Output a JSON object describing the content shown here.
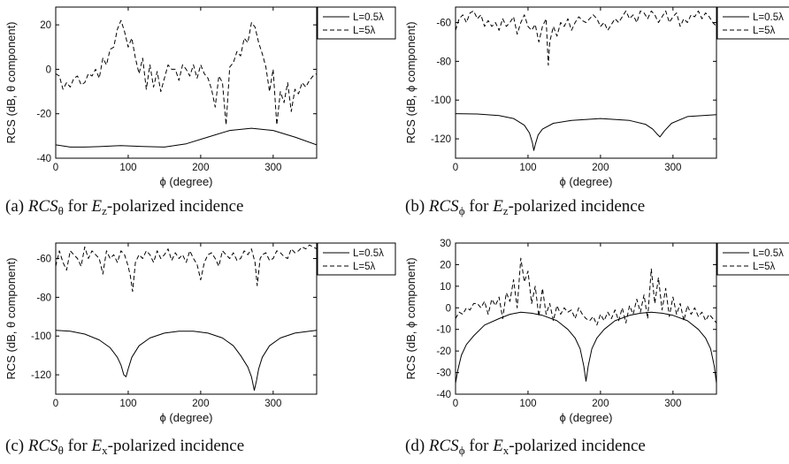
{
  "chart_data": [
    {
      "type": "line",
      "panel": "a",
      "ylabel": "RCS (dB, θ component)",
      "xlabel": "ϕ (degree)",
      "xlim": [
        0,
        360
      ],
      "ylim": [
        -40,
        28
      ],
      "xticks": [
        0,
        100,
        200,
        300
      ],
      "yticks": [
        20,
        0,
        -20,
        -40
      ],
      "legend": "top-right",
      "grid": false,
      "caption": {
        "label": "(a)",
        "rcs": "RCS",
        "sub": "θ",
        "mid": " for ",
        "e": "E",
        "esub": "z",
        "rest": "-polarized incidence"
      },
      "series": [
        {
          "name": "L=0.5λ",
          "style": "solid",
          "x": [
            0,
            20,
            40,
            60,
            90,
            120,
            150,
            180,
            210,
            240,
            270,
            300,
            330,
            360
          ],
          "y": [
            -34,
            -35,
            -35,
            -34.8,
            -34.3,
            -34.7,
            -35,
            -33.5,
            -30.5,
            -27.5,
            -26.5,
            -27.5,
            -30.5,
            -34
          ]
        },
        {
          "name": "L=5λ",
          "style": "dashed",
          "x": [
            0,
            5,
            10,
            15,
            20,
            25,
            30,
            35,
            40,
            45,
            50,
            55,
            60,
            65,
            70,
            75,
            80,
            85,
            90,
            95,
            100,
            105,
            110,
            115,
            120,
            125,
            130,
            135,
            140,
            145,
            150,
            155,
            160,
            165,
            170,
            175,
            180,
            185,
            190,
            195,
            200,
            205,
            210,
            215,
            220,
            225,
            230,
            235,
            240,
            245,
            250,
            255,
            260,
            265,
            270,
            275,
            280,
            285,
            290,
            295,
            300,
            305,
            310,
            315,
            320,
            325,
            330,
            335,
            340,
            345,
            350,
            355,
            360
          ],
          "y": [
            -2,
            -3,
            -9,
            -6,
            -8,
            -4,
            -3,
            -7,
            -6,
            -2,
            -3,
            0,
            -4,
            5,
            2,
            9,
            10,
            18,
            22,
            17,
            10,
            14,
            5,
            -2,
            5,
            -9,
            2,
            -8,
            -1,
            -10,
            -4,
            2,
            0,
            0,
            -5,
            2,
            0,
            -3,
            2,
            -4,
            2,
            -2,
            -4,
            -9,
            -17,
            -3,
            -6,
            -25,
            1,
            3,
            8,
            6,
            14,
            12,
            21,
            19,
            12,
            7,
            1,
            -10,
            0,
            -25,
            -10,
            -15,
            -6,
            -19,
            -9,
            -11,
            -6,
            -8,
            -5,
            -3,
            -2
          ]
        }
      ]
    },
    {
      "type": "line",
      "panel": "b",
      "ylabel": "RCS (dB, ϕ component)",
      "xlabel": "ϕ (degree)",
      "xlim": [
        0,
        360
      ],
      "ylim": [
        -130,
        -52
      ],
      "xticks": [
        0,
        100,
        200,
        300
      ],
      "yticks": [
        -60,
        -80,
        -100,
        -120
      ],
      "legend": "top-right",
      "grid": false,
      "caption": {
        "label": "(b)",
        "rcs": "RCS",
        "sub": "ϕ",
        "mid": " for ",
        "e": "E",
        "esub": "z",
        "rest": "-polarized incidence"
      },
      "series": [
        {
          "name": "L=0.5λ",
          "style": "solid",
          "x": [
            0,
            30,
            60,
            80,
            95,
            102,
            106,
            108,
            110,
            114,
            120,
            135,
            160,
            200,
            240,
            262,
            272,
            278,
            282,
            288,
            298,
            320,
            360
          ],
          "y": [
            -107,
            -107.2,
            -108,
            -109.5,
            -113,
            -117,
            -122,
            -126,
            -123,
            -118,
            -115,
            -112,
            -110.5,
            -109.5,
            -110.5,
            -112.5,
            -115,
            -117.5,
            -119,
            -116,
            -112,
            -108.5,
            -107.5
          ]
        },
        {
          "name": "L=5λ",
          "style": "dashed",
          "x": [
            0,
            5,
            10,
            15,
            20,
            25,
            30,
            35,
            40,
            45,
            50,
            55,
            60,
            65,
            70,
            75,
            80,
            85,
            90,
            95,
            100,
            105,
            110,
            115,
            120,
            125,
            128,
            130,
            135,
            140,
            145,
            150,
            155,
            160,
            165,
            170,
            175,
            180,
            185,
            190,
            195,
            200,
            205,
            210,
            215,
            220,
            225,
            230,
            235,
            240,
            245,
            250,
            255,
            260,
            265,
            270,
            275,
            280,
            285,
            290,
            295,
            300,
            305,
            310,
            315,
            320,
            325,
            330,
            335,
            340,
            345,
            350,
            355,
            360
          ],
          "y": [
            -64,
            -58,
            -56,
            -60,
            -55,
            -54,
            -58,
            -56,
            -62,
            -59,
            -62,
            -60,
            -64,
            -58,
            -62,
            -60,
            -57,
            -66,
            -60,
            -56,
            -62,
            -64,
            -61,
            -70,
            -62,
            -58,
            -82,
            -70,
            -62,
            -67,
            -60,
            -62,
            -58,
            -64,
            -60,
            -57,
            -59,
            -60,
            -58,
            -56,
            -58,
            -62,
            -60,
            -64,
            -61,
            -58,
            -60,
            -57,
            -54,
            -58,
            -56,
            -60,
            -54,
            -55,
            -58,
            -54,
            -56,
            -60,
            -57,
            -54,
            -60,
            -57,
            -55,
            -62,
            -58,
            -60,
            -56,
            -57,
            -54,
            -58,
            -55,
            -57,
            -60,
            -62
          ]
        }
      ]
    },
    {
      "type": "line",
      "panel": "c",
      "ylabel": "RCS (dB, θ component)",
      "xlabel": "ϕ (degree)",
      "xlim": [
        0,
        360
      ],
      "ylim": [
        -130,
        -52
      ],
      "xticks": [
        0,
        100,
        200,
        300
      ],
      "yticks": [
        -60,
        -80,
        -100,
        -120
      ],
      "legend": "top-right",
      "grid": false,
      "caption": {
        "label": "(c)",
        "rcs": "RCS",
        "sub": "θ",
        "mid": " for ",
        "e": "E",
        "esub": "x",
        "rest": "-polarized incidence"
      },
      "series": [
        {
          "name": "L=0.5λ",
          "style": "solid",
          "x": [
            0,
            20,
            40,
            60,
            75,
            85,
            90,
            94,
            97,
            100,
            105,
            115,
            130,
            150,
            170,
            190,
            210,
            230,
            245,
            255,
            265,
            270,
            274,
            277,
            280,
            285,
            295,
            310,
            330,
            350,
            360
          ],
          "y": [
            -97,
            -97.5,
            -99,
            -102,
            -106,
            -111,
            -115,
            -120,
            -121,
            -117,
            -111,
            -105,
            -101,
            -98.5,
            -97.5,
            -97.5,
            -98.5,
            -101,
            -105,
            -110,
            -116,
            -121,
            -128,
            -123,
            -117,
            -111,
            -105,
            -101,
            -98.5,
            -97.5,
            -97
          ]
        },
        {
          "name": "L=5λ",
          "style": "dashed",
          "x": [
            0,
            5,
            10,
            15,
            20,
            25,
            30,
            35,
            40,
            45,
            50,
            55,
            60,
            65,
            70,
            75,
            80,
            85,
            90,
            95,
            100,
            103,
            106,
            110,
            115,
            120,
            125,
            130,
            135,
            140,
            145,
            150,
            155,
            160,
            165,
            170,
            175,
            180,
            185,
            190,
            195,
            200,
            205,
            210,
            215,
            220,
            225,
            230,
            235,
            240,
            245,
            250,
            255,
            260,
            265,
            270,
            275,
            278,
            282,
            285,
            290,
            295,
            300,
            305,
            310,
            315,
            320,
            325,
            330,
            335,
            340,
            345,
            350,
            355,
            360
          ],
          "y": [
            -64,
            -56,
            -62,
            -66,
            -56,
            -58,
            -60,
            -64,
            -54,
            -60,
            -56,
            -58,
            -60,
            -68,
            -56,
            -60,
            -58,
            -62,
            -56,
            -58,
            -64,
            -69,
            -77,
            -62,
            -58,
            -60,
            -56,
            -58,
            -62,
            -56,
            -60,
            -58,
            -55,
            -61,
            -57,
            -60,
            -58,
            -62,
            -56,
            -60,
            -63,
            -71,
            -62,
            -58,
            -57,
            -60,
            -64,
            -56,
            -58,
            -60,
            -57,
            -61,
            -60,
            -56,
            -58,
            -55,
            -62,
            -74,
            -60,
            -58,
            -57,
            -61,
            -60,
            -56,
            -57,
            -59,
            -60,
            -55,
            -57,
            -56,
            -54,
            -55,
            -53,
            -54,
            -55
          ]
        }
      ]
    },
    {
      "type": "line",
      "panel": "d",
      "ylabel": "RCS (dB, ϕ component)",
      "xlabel": "ϕ (degree)",
      "xlim": [
        0,
        360
      ],
      "ylim": [
        -40,
        30
      ],
      "xticks": [
        0,
        100,
        200,
        300
      ],
      "yticks": [
        30,
        20,
        10,
        0,
        -10,
        -20,
        -30,
        -40
      ],
      "legend": "top-right",
      "grid": false,
      "caption": {
        "label": "(d)",
        "rcs": "RCS",
        "sub": "ϕ",
        "mid": " for ",
        "e": "E",
        "esub": "x",
        "rest": "-polarized incidence"
      },
      "series": [
        {
          "name": "L=0.5λ",
          "style": "solid",
          "x": [
            0,
            3,
            8,
            15,
            25,
            40,
            60,
            75,
            90,
            105,
            120,
            140,
            155,
            165,
            172,
            177,
            180,
            183,
            188,
            195,
            205,
            220,
            240,
            255,
            270,
            285,
            300,
            320,
            335,
            345,
            352,
            357,
            360
          ],
          "y": [
            -35,
            -29,
            -22,
            -17,
            -13,
            -8,
            -5,
            -3,
            -2,
            -2.5,
            -3.5,
            -6,
            -10,
            -14,
            -19,
            -27,
            -34,
            -27,
            -19,
            -14,
            -10,
            -6,
            -3.5,
            -2.5,
            -2,
            -2.5,
            -3.5,
            -6,
            -10,
            -14,
            -19,
            -27,
            -35
          ]
        },
        {
          "name": "L=5λ",
          "style": "dashed",
          "x": [
            0,
            5,
            10,
            15,
            20,
            25,
            30,
            35,
            40,
            45,
            50,
            55,
            60,
            65,
            70,
            75,
            80,
            85,
            90,
            95,
            100,
            105,
            110,
            115,
            120,
            125,
            130,
            135,
            140,
            145,
            150,
            155,
            160,
            165,
            170,
            175,
            180,
            185,
            190,
            195,
            200,
            205,
            210,
            215,
            220,
            225,
            230,
            235,
            240,
            245,
            250,
            255,
            260,
            265,
            270,
            275,
            280,
            285,
            290,
            295,
            300,
            305,
            310,
            315,
            320,
            325,
            330,
            335,
            340,
            345,
            350,
            355,
            360
          ],
          "y": [
            -5,
            -2,
            -3,
            0,
            -1,
            2,
            2,
            0,
            3,
            -3,
            4,
            1,
            5,
            -5,
            7,
            3,
            13,
            0,
            23,
            12,
            17,
            2,
            10,
            -4,
            9,
            -3,
            2,
            -6,
            1,
            -3,
            0,
            -2,
            -1,
            -5,
            0,
            -3,
            -5,
            -6,
            -4,
            -8,
            -3,
            -6,
            -2,
            -5,
            -1,
            -6,
            0,
            -7,
            1,
            -3,
            4,
            -2,
            6,
            -5,
            18,
            2,
            14,
            -1,
            9,
            -4,
            5,
            -3,
            2,
            -6,
            1,
            -3,
            0,
            -4,
            -2,
            -6,
            -3,
            -5,
            -7
          ]
        }
      ]
    }
  ]
}
